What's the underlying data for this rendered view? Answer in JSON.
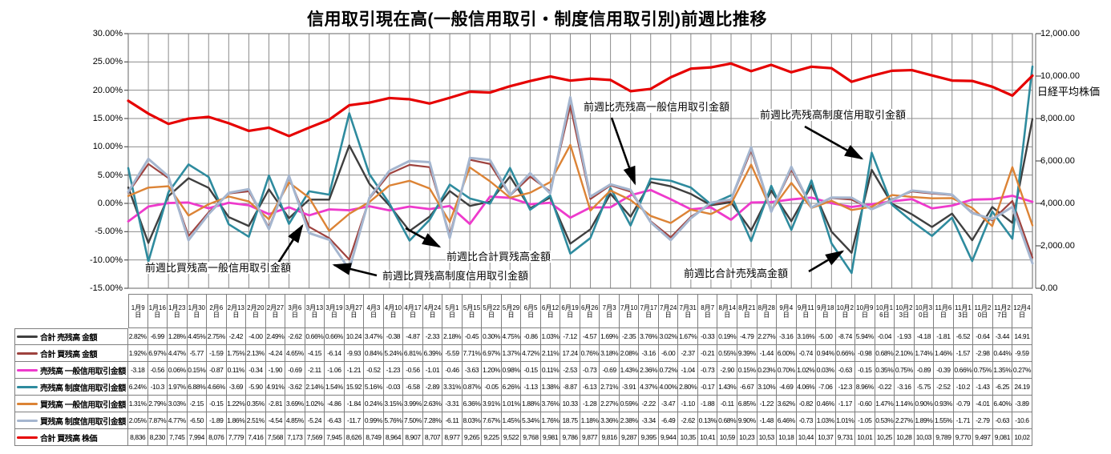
{
  "title": "信用取引現在高(一般信用取引・制度信用取引別)前週比推移",
  "chart": {
    "left_axis_ticks": [
      "30.00%",
      "25.00%",
      "20.00%",
      "15.00%",
      "10.00%",
      "5.00%",
      "0.00%",
      "-5.00%",
      "-10.00%",
      "-15.00%"
    ],
    "right_axis_ticks": [
      "12,000.00",
      "10,000.00",
      "8,000.00",
      "6,000.00",
      "4,000.00",
      "2,000.00",
      "0.00"
    ],
    "right_axis_label": "日経平均株価",
    "annotations": [
      {
        "id": "sell-general",
        "text": "前週比売残高一般信用取引金額"
      },
      {
        "id": "sell-system",
        "text": "前週比売残高制度信用取引金額"
      },
      {
        "id": "buy-general",
        "text": "前週比買残高一般信用取引金額"
      },
      {
        "id": "buy-system",
        "text": "前週比買残高制度信用取引金額"
      },
      {
        "id": "total-buy",
        "text": "前週比合計買残高金額"
      },
      {
        "id": "total-sell",
        "text": "前週比合計売残高金額"
      }
    ]
  },
  "chart_data": {
    "type": "line",
    "title": "信用取引現在高(一般信用取引・制度信用取引別)前週比推移",
    "grid": true,
    "categories": [
      "1月9日",
      "1月16日",
      "1月23日",
      "1月30日",
      "2月6日",
      "2月13日",
      "2月20日",
      "2月27日",
      "3月6日",
      "3月13日",
      "3月19日",
      "3月27日",
      "4月3日",
      "4月10日",
      "4月17日",
      "4月24日",
      "5月1日",
      "5月15日",
      "5月22日",
      "5月29日",
      "6月5日",
      "6月12日",
      "6月19日",
      "6月26日",
      "7月3日",
      "7月10日",
      "7月17日",
      "7月24日",
      "7月31日",
      "8月7日",
      "8月14日",
      "8月21日",
      "8月28日",
      "9月4日",
      "9月11日",
      "9月18日",
      "10月2日",
      "10月9日",
      "10月16日",
      "10月23日",
      "10月30日",
      "11月6日",
      "11月13日",
      "11月20日",
      "11月27日",
      "12月4日"
    ],
    "y_left": {
      "unit": "%",
      "range": [
        -15,
        30
      ],
      "step": 5
    },
    "y_right": {
      "label": "日経平均株価",
      "range": [
        0,
        12000
      ],
      "step": 2000
    },
    "series": [
      {
        "name": "合計 売残高 金額",
        "color": "#3f3f3f",
        "axis": "left",
        "width": 2.4,
        "values": [
          2.82,
          -6.99,
          1.28,
          4.45,
          2.75,
          -2.42,
          -4.0,
          2.49,
          -2.62,
          0.66,
          0.66,
          10.24,
          3.47,
          -0.38,
          -4.87,
          -2.33,
          2.18,
          -0.45,
          0.3,
          4.75,
          -0.86,
          1.03,
          -7.12,
          -4.57,
          1.69,
          -2.35,
          3.76,
          3.02,
          1.67,
          -0.33,
          0.19,
          -4.79,
          2.27,
          -3.16,
          3.16,
          -5.0,
          -8.74,
          5.94,
          -0.04,
          -1.93,
          -4.18,
          -1.81,
          -6.52,
          -0.64,
          -3.44,
          14.91
        ]
      },
      {
        "name": "合計 買残高 金額",
        "color": "#9e423e",
        "axis": "left",
        "width": 2.2,
        "values": [
          1.92,
          6.97,
          4.47,
          -5.77,
          -1.59,
          1.75,
          2.13,
          -4.24,
          4.65,
          -4.15,
          -6.14,
          -9.93,
          0.84,
          5.24,
          6.81,
          6.39,
          -5.59,
          7.71,
          6.97,
          1.37,
          4.72,
          2.11,
          17.24,
          0.76,
          3.18,
          2.08,
          -3.16,
          -6.0,
          -2.37,
          -0.21,
          0.55,
          9.39,
          -1.44,
          6.0,
          -0.74,
          0.94,
          0.66,
          -0.98,
          0.68,
          2.1,
          1.74,
          1.46,
          -1.57,
          -2.98,
          0.44,
          -9.59
        ]
      },
      {
        "name": "売残高 一般信用取引金額",
        "color": "#ee3acc",
        "axis": "left",
        "width": 2.8,
        "values": [
          -3.18,
          -0.56,
          0.06,
          0.15,
          -0.87,
          0.11,
          -0.34,
          -1.9,
          -0.69,
          -2.11,
          -1.06,
          -1.21,
          -0.52,
          -1.23,
          -0.56,
          -1.01,
          -0.46,
          -3.63,
          1.2,
          0.98,
          -0.15,
          0.11,
          -2.53,
          -0.73,
          -0.69,
          1.43,
          2.36,
          0.72,
          -1.04,
          -0.73,
          -2.9,
          0.15,
          0.23,
          0.7,
          1.02,
          0.03,
          -0.63,
          -0.15,
          0.35,
          0.75,
          -0.89,
          -0.39,
          0.66,
          0.75,
          1.35,
          0.27
        ]
      },
      {
        "name": "売残高 制度信用取引金額",
        "color": "#2e8b9e",
        "axis": "left",
        "width": 2.6,
        "values": [
          6.24,
          -10.3,
          1.97,
          6.88,
          4.66,
          -3.69,
          -5.9,
          4.91,
          -3.62,
          2.14,
          1.54,
          15.92,
          5.16,
          -0.03,
          -6.58,
          -2.89,
          3.31,
          0.87,
          -0.05,
          6.26,
          -1.13,
          1.38,
          -8.87,
          -6.13,
          2.71,
          -3.91,
          4.37,
          4.0,
          2.8,
          -0.17,
          1.43,
          -6.67,
          3.1,
          -4.69,
          4.06,
          -7.06,
          -12.3,
          8.96,
          -0.22,
          -3.16,
          -5.75,
          -2.52,
          -10.2,
          -1.43,
          -6.25,
          24.19
        ]
      },
      {
        "name": "買残高 一般信用取引金額",
        "color": "#dc8335",
        "axis": "left",
        "width": 2.4,
        "values": [
          1.31,
          2.79,
          3.03,
          -2.15,
          -0.15,
          1.22,
          0.35,
          -2.81,
          3.69,
          1.02,
          -4.86,
          -1.84,
          0.24,
          3.15,
          3.99,
          2.63,
          -3.31,
          6.36,
          3.91,
          1.01,
          1.88,
          3.76,
          10.33,
          -1.28,
          2.27,
          0.59,
          -2.22,
          -3.47,
          -1.1,
          -1.88,
          -0.11,
          6.85,
          -1.22,
          3.62,
          -0.82,
          0.46,
          -1.17,
          -0.6,
          1.47,
          1.14,
          0.9,
          0.93,
          -0.79,
          -4.01,
          6.4,
          -3.89
        ]
      },
      {
        "name": "買残高 制度信用取引金額",
        "color": "#a5b6cf",
        "axis": "left",
        "width": 3,
        "values": [
          2.05,
          7.87,
          4.77,
          -6.5,
          -1.89,
          1.86,
          2.51,
          -4.54,
          4.85,
          -5.24,
          -6.43,
          -11.7,
          0.99,
          5.76,
          7.5,
          7.28,
          -6.11,
          8.03,
          7.67,
          1.45,
          5.34,
          1.76,
          18.75,
          1.18,
          3.36,
          2.38,
          -3.34,
          -6.49,
          -2.62,
          0.13,
          0.68,
          9.9,
          -1.48,
          6.46,
          -0.73,
          1.03,
          1.01,
          -1.05,
          0.53,
          2.27,
          1.89,
          1.55,
          -1.71,
          -2.79,
          -0.63,
          -10.6
        ]
      },
      {
        "name": "合計 買残高 株価",
        "color": "#e60000",
        "axis": "right",
        "width": 3.2,
        "values": [
          8836,
          8230,
          7745,
          7994,
          8076,
          7779,
          7416,
          7568,
          7173,
          7569,
          7945,
          8626,
          8749,
          8964,
          8907,
          8707,
          8977,
          9265,
          9225,
          9522,
          9768,
          9981,
          9786,
          9877,
          9816,
          9287,
          9395,
          9944,
          10350,
          10410,
          10590,
          10230,
          10530,
          10180,
          10440,
          10370,
          9731,
          10010,
          10250,
          10280,
          10030,
          9789,
          9770,
          9497,
          9081,
          10020
        ]
      }
    ]
  },
  "table": {
    "rows": [
      {
        "label": "合計 売残高 金額",
        "color": "#3f3f3f",
        "cells": [
          "2.82%",
          "-6.99",
          "1.28%",
          "4.45%",
          "2.75%",
          "-2.42",
          "-4.00",
          "2.49%",
          "-2.62",
          "0.66%",
          "0.66%",
          "10.24",
          "3.47%",
          "-0.38",
          "-4.87",
          "-2.33",
          "2.18%",
          "-0.45",
          "0.30%",
          "4.75%",
          "-0.86",
          "1.03%",
          "-7.12",
          "-4.57",
          "1.69%",
          "-2.35",
          "3.76%",
          "3.02%",
          "1.67%",
          "-0.33",
          "0.19%",
          "-4.79",
          "2.27%",
          "-3.16",
          "3.16%",
          "-5.00",
          "-8.74",
          "5.94%",
          "-0.04",
          "-1.93",
          "-4.18",
          "-1.81",
          "-6.52",
          "-0.64",
          "-3.44",
          "14.91"
        ]
      },
      {
        "label": "合計 買残高 金額",
        "color": "#9e423e",
        "cells": [
          "1.92%",
          "6.97%",
          "4.47%",
          "-5.77",
          "-1.59",
          "1.75%",
          "2.13%",
          "-4.24",
          "4.65%",
          "-4.15",
          "-6.14",
          "-9.93",
          "0.84%",
          "5.24%",
          "6.81%",
          "6.39%",
          "-5.59",
          "7.71%",
          "6.97%",
          "1.37%",
          "4.72%",
          "2.11%",
          "17.24",
          "0.76%",
          "3.18%",
          "2.08%",
          "-3.16",
          "-6.00",
          "-2.37",
          "-0.21",
          "0.55%",
          "9.39%",
          "-1.44",
          "6.00%",
          "-0.74",
          "0.94%",
          "0.66%",
          "-0.98",
          "0.68%",
          "2.10%",
          "1.74%",
          "1.46%",
          "-1.57",
          "-2.98",
          "0.44%",
          "-9.59"
        ]
      },
      {
        "label": "売残高 一般信用取引金額",
        "color": "#ee3acc",
        "cells": [
          "-3.18",
          "-0.56",
          "0.06%",
          "0.15%",
          "-0.87",
          "0.11%",
          "-0.34",
          "-1.90",
          "-0.69",
          "-2.11",
          "-1.06",
          "-1.21",
          "-0.52",
          "-1.23",
          "-0.56",
          "-1.01",
          "-0.46",
          "-3.63",
          "1.20%",
          "0.98%",
          "-0.15",
          "0.11%",
          "-2.53",
          "-0.73",
          "-0.69",
          "1.43%",
          "2.36%",
          "0.72%",
          "-1.04",
          "-0.73",
          "-2.90",
          "0.15%",
          "0.23%",
          "0.70%",
          "1.02%",
          "0.03%",
          "-0.63",
          "-0.15",
          "0.35%",
          "0.75%",
          "-0.89",
          "-0.39",
          "0.66%",
          "0.75%",
          "1.35%",
          "0.27%"
        ]
      },
      {
        "label": "売残高 制度信用取引金額",
        "color": "#2e8b9e",
        "cells": [
          "6.24%",
          "-10.3",
          "1.97%",
          "6.88%",
          "4.66%",
          "-3.69",
          "-5.90",
          "4.91%",
          "-3.62",
          "2.14%",
          "1.54%",
          "15.92",
          "5.16%",
          "-0.03",
          "-6.58",
          "-2.89",
          "3.31%",
          "0.87%",
          "-0.05",
          "6.26%",
          "-1.13",
          "1.38%",
          "-8.87",
          "-6.13",
          "2.71%",
          "-3.91",
          "4.37%",
          "4.00%",
          "2.80%",
          "-0.17",
          "1.43%",
          "-6.67",
          "3.10%",
          "-4.69",
          "4.06%",
          "-7.06",
          "-12.3",
          "8.96%",
          "-0.22",
          "-3.16",
          "-5.75",
          "-2.52",
          "-10.2",
          "-1.43",
          "-6.25",
          "24.19"
        ]
      },
      {
        "label": "買残高 一般信用取引金額",
        "color": "#dc8335",
        "cells": [
          "1.31%",
          "2.79%",
          "3.03%",
          "-2.15",
          "-0.15",
          "1.22%",
          "0.35%",
          "-2.81",
          "3.69%",
          "1.02%",
          "-4.86",
          "-1.84",
          "0.24%",
          "3.15%",
          "3.99%",
          "2.63%",
          "-3.31",
          "6.36%",
          "3.91%",
          "1.01%",
          "1.88%",
          "3.76%",
          "10.33",
          "-1.28",
          "2.27%",
          "0.59%",
          "-2.22",
          "-3.47",
          "-1.10",
          "-1.88",
          "-0.11",
          "6.85%",
          "-1.22",
          "3.62%",
          "-0.82",
          "0.46%",
          "-1.17",
          "-0.60",
          "1.47%",
          "1.14%",
          "0.90%",
          "0.93%",
          "-0.79",
          "-4.01",
          "6.40%",
          "-3.89"
        ]
      },
      {
        "label": "買残高 制度信用取引金額",
        "color": "#a5b6cf",
        "cells": [
          "2.05%",
          "7.87%",
          "4.77%",
          "-6.50",
          "-1.89",
          "1.86%",
          "2.51%",
          "-4.54",
          "4.85%",
          "-5.24",
          "-6.43",
          "-11.7",
          "0.99%",
          "5.76%",
          "7.50%",
          "7.28%",
          "-6.11",
          "8.03%",
          "7.67%",
          "1.45%",
          "5.34%",
          "1.76%",
          "18.75",
          "1.18%",
          "3.36%",
          "2.38%",
          "-3.34",
          "-6.49",
          "-2.62",
          "0.13%",
          "0.68%",
          "9.90%",
          "-1.48",
          "6.46%",
          "-0.73",
          "1.03%",
          "1.01%",
          "-1.05",
          "0.53%",
          "2.27%",
          "1.89%",
          "1.55%",
          "-1.71",
          "-2.79",
          "-0.63",
          "-10.6"
        ]
      },
      {
        "label": "合計 買残高 株価",
        "color": "#e60000",
        "cells": [
          "8,836",
          "8,230",
          "7,745",
          "7,994",
          "8,076",
          "7,779",
          "7,416",
          "7,568",
          "7,173",
          "7,569",
          "7,945",
          "8,626",
          "8,749",
          "8,964",
          "8,907",
          "8,707",
          "8,977",
          "9,265",
          "9,225",
          "9,522",
          "9,768",
          "9,981",
          "9,786",
          "9,877",
          "9,816",
          "9,287",
          "9,395",
          "9,944",
          "10,35",
          "10,41",
          "10,59",
          "10,23",
          "10,53",
          "10,18",
          "10,44",
          "10,37",
          "9,731",
          "10,01",
          "10,25",
          "10,28",
          "10,03",
          "9,789",
          "9,770",
          "9,497",
          "9,081",
          "10,02"
        ]
      }
    ]
  }
}
